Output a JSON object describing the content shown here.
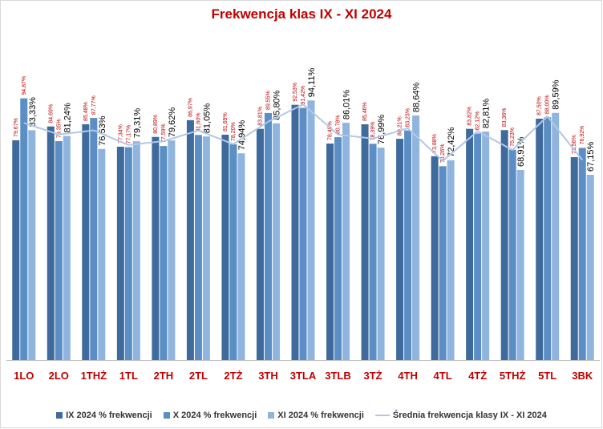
{
  "chart_data": {
    "type": "bar",
    "title": "Frekwencja klas IX - XI 2024",
    "categories": [
      "1LO",
      "2LO",
      "1THŻ",
      "1TL",
      "2TH",
      "2TL",
      "2TŻ",
      "3TH",
      "3TLA",
      "3TLB",
      "3TŻ",
      "4TH",
      "4TL",
      "4TŻ",
      "5THŻ",
      "5TL",
      "3BK"
    ],
    "series": [
      {
        "name": "IX 2024 % frekwencji",
        "kind": "bar",
        "color": "#3e6b9b",
        "values": [
          79.67,
          84.69,
          85.48,
          77.34,
          80.89,
          86.97,
          81.69,
          83.81,
          92.53,
          78.48,
          85.46,
          80.21,
          73.88,
          83.82,
          83.36,
          87.5,
          73.56
        ],
        "labels": [
          "79,67%",
          "84,69%",
          "85,48%",
          "77,34%",
          "80,89%",
          "86,97%",
          "81,69%",
          "83,81%",
          "92,53%",
          "78,48%",
          "85,46%",
          "80,21%",
          "73,88%",
          "83,82%",
          "83,36%",
          "87,50%",
          "73,56%"
        ]
      },
      {
        "name": "X 2024 % frekwencji",
        "kind": "bar",
        "color": "#5a8ec4",
        "values": [
          94.87,
          79.35,
          87.77,
          77.17,
          77.59,
          81.6,
          78.2,
          89.55,
          91.42,
          80.78,
          78.39,
          83.23,
          70.26,
          82.12,
          76.23,
          88.0,
          76.92
        ],
        "labels": [
          "94,87%",
          "79,35%",
          "87,77%",
          "77,17%",
          "77,59%",
          "81,60%",
          "78,20%",
          "89,55%",
          "91,42%",
          "80,78%",
          "78,39%",
          "83,23%",
          "70,26%",
          "82,12%",
          "76,23%",
          "88,00%",
          "76,92%"
        ]
      },
      {
        "name": "XI 2024 % frekwencji",
        "kind": "bar",
        "color": "#8fb4de",
        "values": [
          83.33,
          81.24,
          76.53,
          79.31,
          79.62,
          81.05,
          74.94,
          85.8,
          94.11,
          86.01,
          76.99,
          88.64,
          72.42,
          82.81,
          68.91,
          89.59,
          67.15
        ],
        "labels": [
          "83,33%",
          "81,24%",
          "76,53%",
          "79,31%",
          "79,62%",
          "81,05%",
          "74,94%",
          "85,80%",
          "94,11%",
          "86,01%",
          "76,99%",
          "88,64%",
          "72,42%",
          "82,81%",
          "68,91%",
          "89,59%",
          "67,15%"
        ]
      },
      {
        "name": "Średnia frekwencja klasy IX - XI 2024",
        "kind": "line",
        "color": "#b4c7e7",
        "values": [
          85.96,
          81.76,
          83.26,
          77.94,
          79.37,
          83.21,
          78.28,
          86.39,
          92.69,
          81.76,
          80.28,
          84.03,
          72.19,
          82.92,
          76.17,
          88.36,
          72.54
        ]
      }
    ],
    "ylim": [
      0,
      100
    ],
    "grid": false,
    "legend": "bottom"
  }
}
